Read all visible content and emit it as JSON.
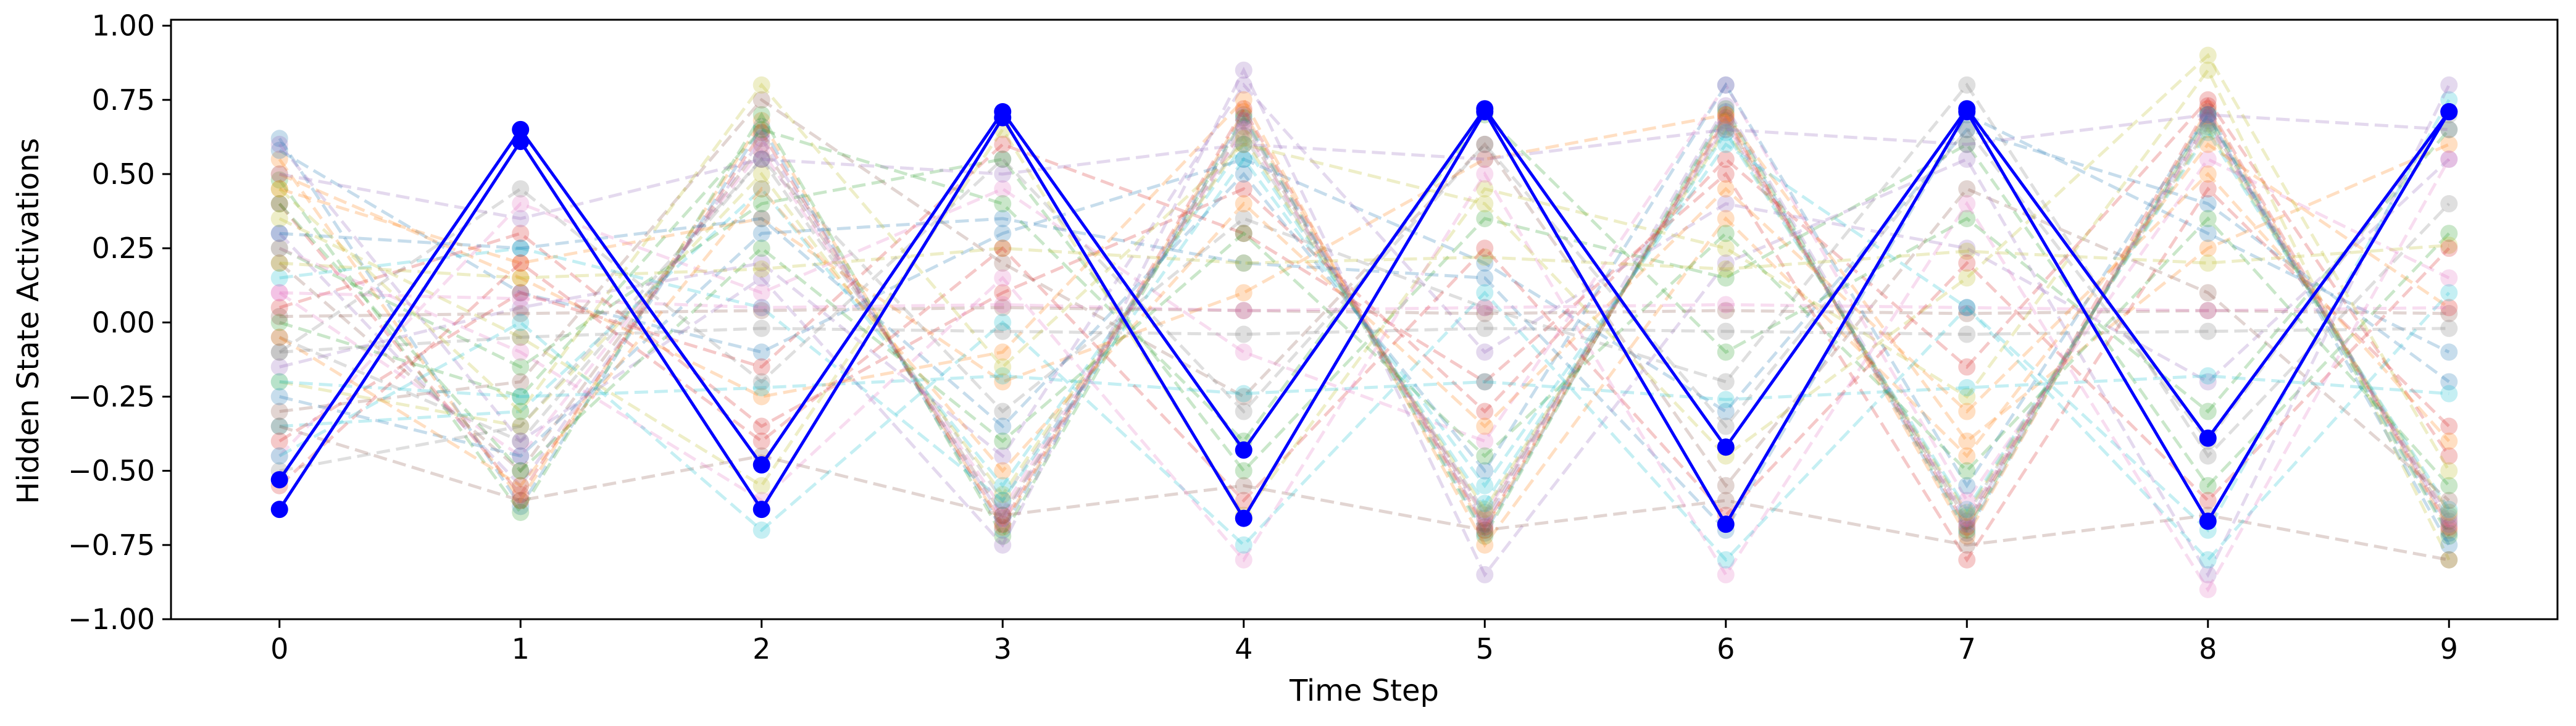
{
  "chart_data": {
    "type": "line",
    "title": "",
    "xlabel": "Time Step",
    "ylabel": "Hidden State Activations",
    "x": [
      0,
      1,
      2,
      3,
      4,
      5,
      6,
      7,
      8,
      9
    ],
    "xlim": [
      -0.45,
      9.45
    ],
    "ylim": [
      -1.0,
      1.02
    ],
    "x_ticks": [
      "0",
      "1",
      "2",
      "3",
      "4",
      "5",
      "6",
      "7",
      "8",
      "9"
    ],
    "y_ticks": [
      "1.00",
      "0.75",
      "0.50",
      "0.25",
      "0.00",
      "−0.25",
      "−0.50",
      "−0.75",
      "−1.00"
    ],
    "y_tick_values": [
      1.0,
      0.75,
      0.5,
      0.25,
      0.0,
      -0.25,
      -0.5,
      -0.75,
      -1.0
    ],
    "highlight_color": "#0000ff",
    "highlight_series": [
      {
        "values": [
          -0.53,
          0.65,
          -0.48,
          0.71,
          -0.43,
          0.72,
          -0.42,
          0.72,
          -0.39,
          0.71
        ]
      },
      {
        "values": [
          -0.63,
          0.61,
          -0.63,
          0.69,
          -0.66,
          0.71,
          -0.68,
          0.71,
          -0.67,
          0.71
        ]
      }
    ],
    "background_series_style": {
      "line": "dashed",
      "alpha": 0.25,
      "palette": [
        "#1f77b4",
        "#ff7f0e",
        "#2ca02c",
        "#d62728",
        "#9467bd",
        "#8c564b",
        "#e377c2",
        "#7f7f7f",
        "#bcbd22",
        "#17becf"
      ]
    },
    "background_series": [
      {
        "values": [
          0.62,
          -0.62,
          0.66,
          -0.7,
          0.7,
          -0.71,
          0.71,
          -0.71,
          0.71,
          -0.71
        ]
      },
      {
        "values": [
          0.55,
          -0.6,
          0.68,
          -0.69,
          0.71,
          -0.7,
          0.7,
          -0.72,
          0.72,
          -0.7
        ]
      },
      {
        "values": [
          0.48,
          -0.64,
          0.7,
          -0.72,
          0.69,
          -0.72,
          0.72,
          -0.7,
          0.7,
          -0.72
        ]
      },
      {
        "values": [
          0.4,
          -0.58,
          0.64,
          -0.68,
          0.72,
          -0.69,
          0.69,
          -0.69,
          0.73,
          -0.69
        ]
      },
      {
        "values": [
          0.3,
          -0.55,
          0.62,
          -0.66,
          0.68,
          -0.68,
          0.73,
          -0.68,
          0.69,
          -0.68
        ]
      },
      {
        "values": [
          0.2,
          -0.5,
          0.6,
          -0.65,
          0.66,
          -0.66,
          0.68,
          -0.67,
          0.68,
          -0.67
        ]
      },
      {
        "values": [
          0.1,
          -0.45,
          0.58,
          -0.63,
          0.65,
          -0.65,
          0.67,
          -0.66,
          0.67,
          -0.66
        ]
      },
      {
        "values": [
          -0.05,
          -0.4,
          0.55,
          -0.6,
          0.63,
          -0.64,
          0.66,
          -0.65,
          0.66,
          -0.65
        ]
      },
      {
        "values": [
          -0.2,
          -0.35,
          0.5,
          -0.58,
          0.62,
          -0.63,
          0.65,
          -0.64,
          0.65,
          -0.64
        ]
      },
      {
        "values": [
          -0.35,
          -0.3,
          0.45,
          -0.55,
          0.6,
          -0.61,
          0.64,
          -0.63,
          0.64,
          -0.63
        ]
      },
      {
        "values": [
          0.58,
          0.1,
          -0.1,
          0.3,
          0.55,
          0.2,
          -0.3,
          0.65,
          0.4,
          -0.2
        ]
      },
      {
        "values": [
          0.45,
          0.2,
          0.35,
          -0.2,
          0.1,
          0.55,
          0.7,
          -0.4,
          0.25,
          0.6
        ]
      },
      {
        "values": [
          0.25,
          -0.15,
          0.4,
          0.55,
          -0.5,
          0.35,
          0.15,
          0.6,
          -0.55,
          0.3
        ]
      },
      {
        "values": [
          0.05,
          0.3,
          -0.35,
          0.1,
          0.45,
          -0.3,
          0.55,
          -0.15,
          0.75,
          -0.45
        ]
      },
      {
        "values": [
          -0.15,
          0.05,
          0.2,
          -0.45,
          0.8,
          -0.1,
          0.4,
          0.25,
          -0.2,
          0.55
        ]
      },
      {
        "values": [
          -0.3,
          -0.2,
          0.75,
          0.2,
          -0.25,
          0.6,
          -0.55,
          0.45,
          0.1,
          -0.6
        ]
      },
      {
        "values": [
          -0.45,
          0.4,
          0.1,
          0.45,
          -0.1,
          -0.4,
          0.8,
          -0.6,
          0.55,
          0.15
        ]
      },
      {
        "values": [
          -0.5,
          -0.35,
          0.55,
          -0.3,
          0.35,
          0.05,
          -0.2,
          0.8,
          -0.45,
          0.4
        ]
      },
      {
        "values": [
          0.35,
          -0.05,
          -0.55,
          0.65,
          -0.65,
          0.45,
          0.25,
          -0.25,
          0.85,
          -0.8
        ]
      },
      {
        "values": [
          0.15,
          0.25,
          0.05,
          -0.6,
          0.55,
          -0.55,
          0.6,
          0.05,
          -0.7,
          0.75
        ]
      },
      {
        "values": [
          -0.25,
          -0.45,
          0.3,
          0.35,
          0.2,
          0.15,
          -0.7,
          0.7,
          0.3,
          -0.1
        ]
      },
      {
        "values": [
          0.5,
          0.15,
          -0.25,
          -0.1,
          0.75,
          -0.75,
          0.35,
          -0.45,
          0.6,
          0.05
        ]
      },
      {
        "values": [
          0.0,
          -0.25,
          0.65,
          0.4,
          -0.4,
          0.7,
          -0.1,
          0.35,
          -0.3,
          0.65
        ]
      },
      {
        "values": [
          -0.4,
          0.1,
          -0.15,
          0.6,
          0.3,
          -0.2,
          0.5,
          -0.8,
          0.45,
          -0.35
        ]
      },
      {
        "values": [
          0.6,
          -0.4,
          0.15,
          -0.75,
          0.85,
          -0.85,
          0.2,
          0.55,
          -0.85,
          0.8
        ]
      },
      {
        "values": [
          0.02,
          0.03,
          0.04,
          0.05,
          0.04,
          0.03,
          0.04,
          0.03,
          0.04,
          0.03
        ]
      },
      {
        "values": [
          0.1,
          0.08,
          0.05,
          0.06,
          0.04,
          0.05,
          0.06,
          0.05,
          0.04,
          0.05
        ]
      },
      {
        "values": [
          -0.1,
          -0.05,
          -0.02,
          -0.03,
          -0.04,
          -0.02,
          -0.03,
          -0.04,
          -0.03,
          -0.02
        ]
      },
      {
        "values": [
          0.2,
          0.15,
          0.18,
          0.25,
          0.2,
          0.22,
          0.18,
          0.24,
          0.2,
          0.26
        ]
      },
      {
        "values": [
          -0.2,
          -0.25,
          -0.22,
          -0.18,
          -0.24,
          -0.2,
          -0.26,
          -0.22,
          -0.18,
          -0.24
        ]
      },
      {
        "values": [
          0.3,
          0.25,
          0.35,
          -0.35,
          0.5,
          -0.5,
          0.8,
          -0.55,
          0.7,
          -0.75
        ]
      },
      {
        "values": [
          -0.05,
          -0.55,
          0.45,
          -0.5,
          0.4,
          -0.35,
          0.45,
          -0.3,
          0.5,
          -0.4
        ]
      },
      {
        "values": [
          0.4,
          -0.5,
          0.25,
          -0.4,
          0.3,
          -0.45,
          0.3,
          -0.5,
          0.35,
          -0.55
        ]
      },
      {
        "values": [
          -0.55,
          0.2,
          -0.4,
          0.25,
          -0.6,
          0.25,
          -0.65,
          0.2,
          -0.6,
          0.25
        ]
      },
      {
        "values": [
          0.5,
          0.35,
          0.55,
          0.5,
          0.6,
          0.55,
          0.65,
          0.6,
          0.7,
          0.65
        ]
      },
      {
        "values": [
          -0.35,
          -0.6,
          -0.45,
          -0.65,
          -0.55,
          -0.7,
          -0.6,
          -0.75,
          -0.65,
          -0.8
        ]
      },
      {
        "values": [
          0.25,
          -0.1,
          -0.6,
          0.15,
          -0.8,
          0.5,
          -0.85,
          0.4,
          -0.9,
          0.55
        ]
      },
      {
        "values": [
          -0.1,
          0.45,
          -0.2,
          0.55,
          -0.3,
          0.6,
          -0.35,
          0.65,
          -0.4,
          0.7
        ]
      },
      {
        "values": [
          0.45,
          -0.3,
          0.8,
          -0.15,
          0.6,
          0.4,
          -0.45,
          0.15,
          0.9,
          -0.5
        ]
      },
      {
        "values": [
          -0.45,
          0.0,
          -0.7,
          0.0,
          -0.75,
          0.1,
          -0.8,
          0.05,
          -0.8,
          0.1
        ]
      }
    ]
  }
}
